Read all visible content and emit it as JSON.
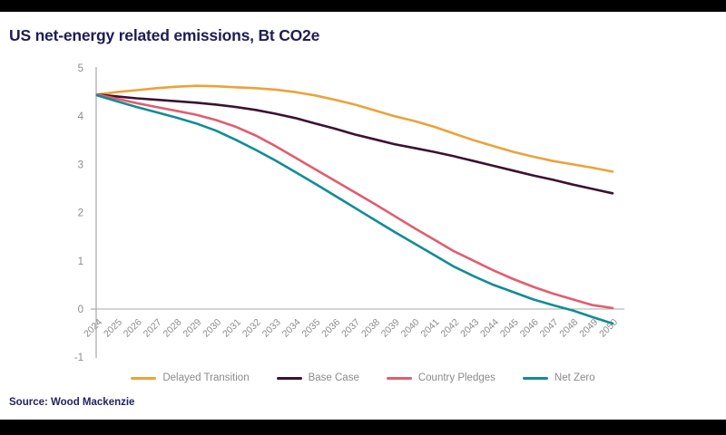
{
  "page": {
    "title": "US net-energy related emissions, Bt CO2e",
    "source": "Source: Wood Mackenzie"
  },
  "chart_data": {
    "type": "line",
    "title": "US net-energy related emissions, Bt CO2e",
    "xlabel": "",
    "ylabel": "",
    "x": [
      2024,
      2025,
      2026,
      2027,
      2028,
      2029,
      2030,
      2031,
      2032,
      2033,
      2034,
      2035,
      2036,
      2037,
      2038,
      2039,
      2040,
      2041,
      2042,
      2043,
      2044,
      2045,
      2046,
      2047,
      2048,
      2049,
      2050
    ],
    "series": [
      {
        "name": "Delayed Transition",
        "color": "#ECA239",
        "values": [
          4.45,
          4.5,
          4.54,
          4.58,
          4.61,
          4.63,
          4.62,
          4.6,
          4.58,
          4.55,
          4.5,
          4.43,
          4.34,
          4.24,
          4.12,
          4.0,
          3.9,
          3.78,
          3.64,
          3.5,
          3.38,
          3.26,
          3.16,
          3.07,
          3.0,
          2.93,
          2.85
        ]
      },
      {
        "name": "Base Case",
        "color": "#3C1230",
        "values": [
          4.45,
          4.41,
          4.37,
          4.34,
          4.31,
          4.28,
          4.24,
          4.19,
          4.13,
          4.05,
          3.96,
          3.85,
          3.74,
          3.62,
          3.52,
          3.42,
          3.34,
          3.26,
          3.17,
          3.07,
          2.97,
          2.87,
          2.77,
          2.68,
          2.58,
          2.49,
          2.4
        ]
      },
      {
        "name": "Country Pledges",
        "color": "#E25D6F",
        "values": [
          4.45,
          4.36,
          4.27,
          4.19,
          4.11,
          4.03,
          3.92,
          3.78,
          3.6,
          3.38,
          3.14,
          2.9,
          2.66,
          2.42,
          2.18,
          1.93,
          1.68,
          1.44,
          1.2,
          1.0,
          0.8,
          0.62,
          0.46,
          0.32,
          0.2,
          0.08,
          0.02
        ]
      },
      {
        "name": "Net Zero",
        "color": "#108D95",
        "values": [
          4.43,
          4.31,
          4.19,
          4.08,
          3.97,
          3.85,
          3.7,
          3.51,
          3.3,
          3.08,
          2.84,
          2.6,
          2.35,
          2.1,
          1.85,
          1.6,
          1.36,
          1.12,
          0.88,
          0.68,
          0.5,
          0.35,
          0.2,
          0.08,
          -0.03,
          -0.17,
          -0.3
        ]
      }
    ],
    "ylim": [
      -1,
      5
    ],
    "y_ticks": [
      5,
      4,
      3,
      2,
      1,
      0,
      -1
    ],
    "grid": false,
    "zero_line": true,
    "legend_position": "bottom",
    "axis_color": "#a8a8a8",
    "tick_label_color": "#8c8c8c"
  }
}
